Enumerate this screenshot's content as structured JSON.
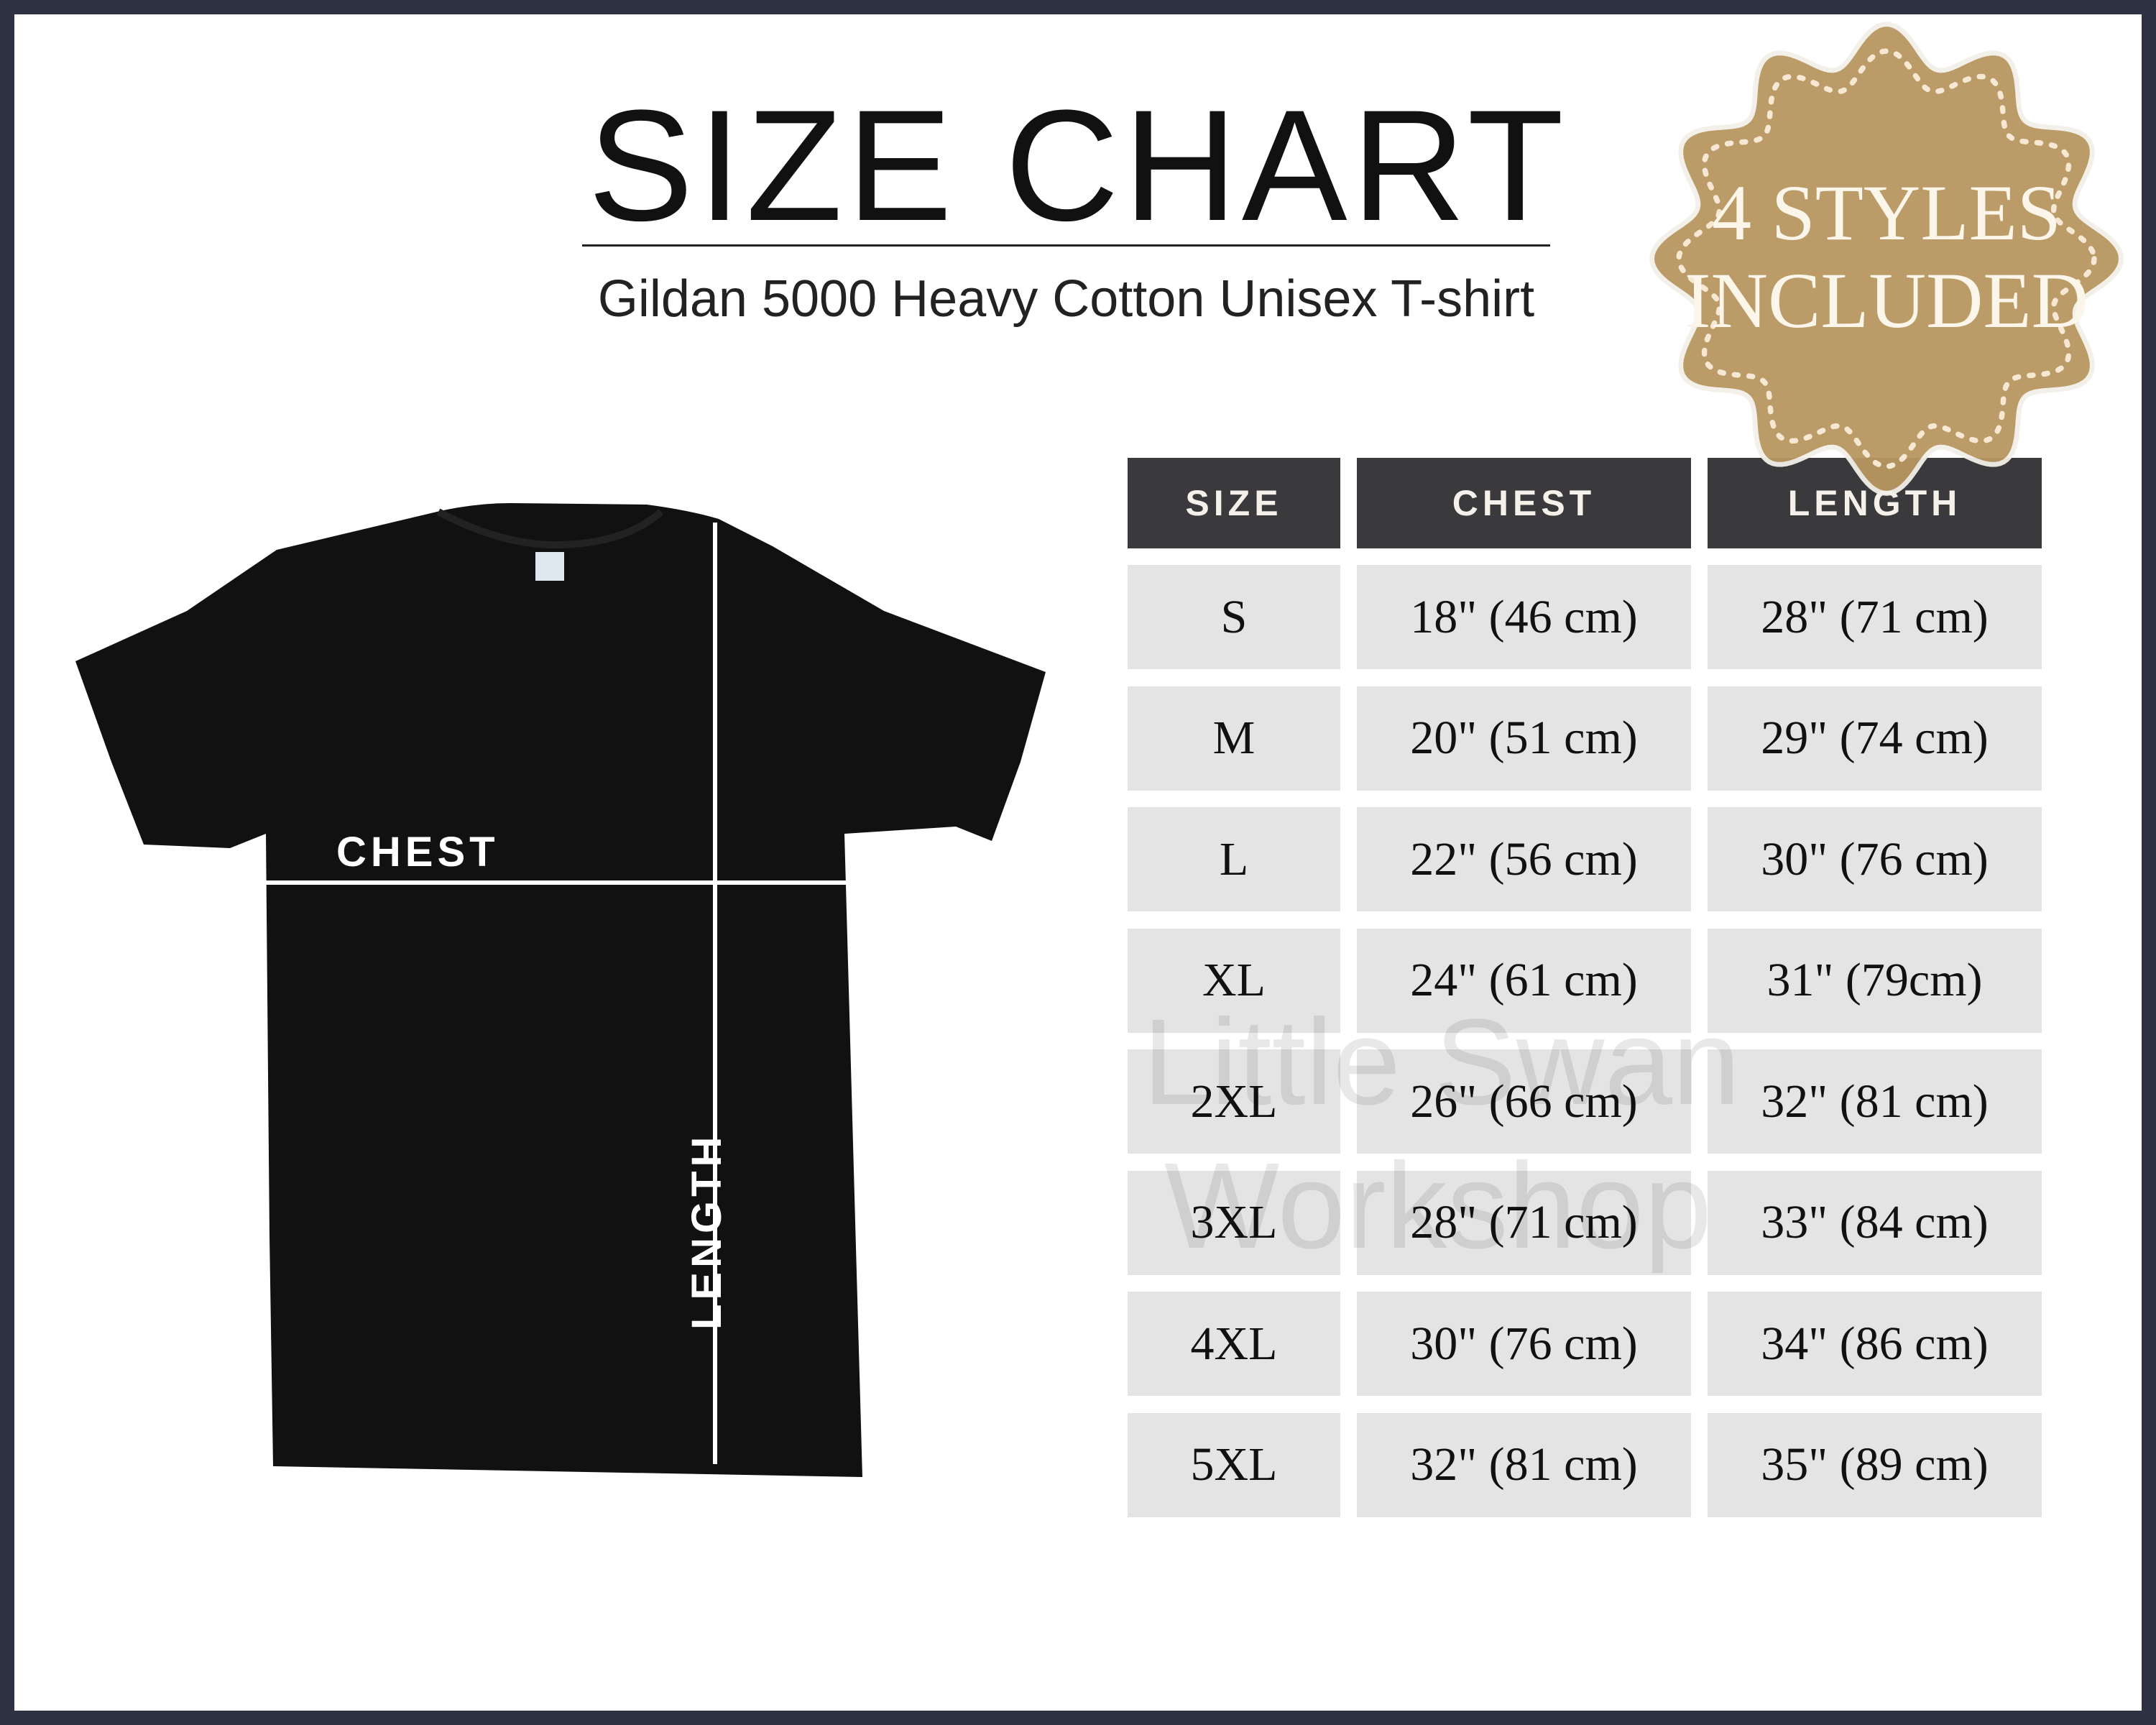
{
  "header": {
    "title": "SIZE CHART",
    "subtitle": "Gildan 5000 Heavy Cotton Unisex T-shirt"
  },
  "badge": {
    "line1": "4 STYLES",
    "line2": "INCLUDED",
    "color": "#b8965f"
  },
  "diagram": {
    "chest_label": "CHEST",
    "length_label": "LENGTH"
  },
  "watermark": {
    "line1": "Little Swan",
    "line2": "Workshop"
  },
  "table": {
    "headers": [
      "SIZE",
      "CHEST",
      "LENGTH"
    ],
    "rows": [
      [
        "S",
        "18\" (46 cm)",
        "28\" (71 cm)"
      ],
      [
        "M",
        "20\" (51 cm)",
        "29\" (74 cm)"
      ],
      [
        "L",
        "22\" (56 cm)",
        "30\" (76 cm)"
      ],
      [
        "XL",
        "24\" (61 cm)",
        "31\" (79cm)"
      ],
      [
        "2XL",
        "26\" (66 cm)",
        "32\" (81 cm)"
      ],
      [
        "3XL",
        "28\" (71 cm)",
        "33\" (84 cm)"
      ],
      [
        "4XL",
        "30\" (76 cm)",
        "34\" (86 cm)"
      ],
      [
        "5XL",
        "32\" (81 cm)",
        "35\" (89 cm)"
      ]
    ]
  },
  "colors": {
    "frame": "#2d3142",
    "header_cell": "#3a3a3c",
    "value_cell": "#e4e4e4"
  }
}
